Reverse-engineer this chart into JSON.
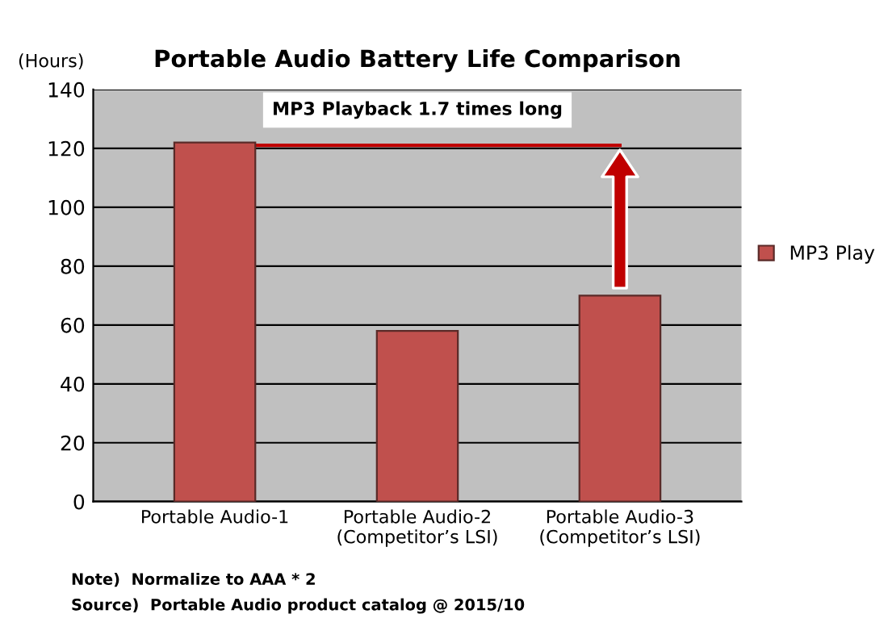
{
  "chart_data": {
    "type": "bar",
    "title": "Portable Audio Battery Life Comparison",
    "ylabel": "(Hours)",
    "categories": [
      "Portable Audio-1",
      "Portable Audio-2\n(Competitor’s LSI)",
      "Portable Audio-3\n(Competitor’s LSI)"
    ],
    "series": [
      {
        "name": "MP3 Play",
        "color": "#c0504d",
        "values": [
          122,
          58,
          70
        ]
      },
      {
        "type": "line",
        "color": "#c00000",
        "values": [
          121,
          121,
          121
        ]
      }
    ],
    "marker": "none",
    "line_style": "solid",
    "ylim": [
      0,
      140
    ],
    "yticks": [
      0,
      20,
      40,
      60,
      80,
      100,
      120,
      140
    ],
    "grid": "y",
    "legend": "right",
    "annotations": [
      "MP3 Playback 1.7 times long",
      "Note)  Normalize to AAA * 2",
      "Source)  Portable Audio product catalog @ 2015/10"
    ]
  }
}
